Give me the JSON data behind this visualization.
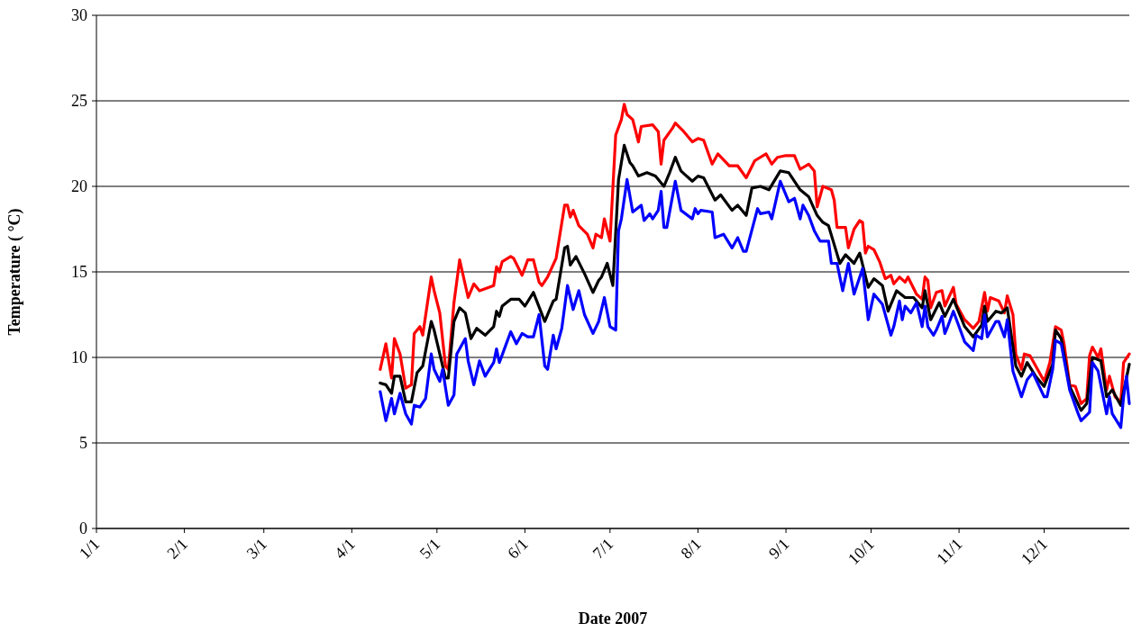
{
  "chart_data": {
    "type": "line",
    "xlabel": "Date 2007",
    "ylabel": "Temperature ( °C)",
    "xlim": [
      "2007-01-01",
      "2007-12-31"
    ],
    "xticks": [
      {
        "value": "2007-01-01",
        "label": "1/1"
      },
      {
        "value": "2007-02-01",
        "label": "2/1"
      },
      {
        "value": "2007-03-01",
        "label": "3/1"
      },
      {
        "value": "2007-04-01",
        "label": "4/1"
      },
      {
        "value": "2007-05-01",
        "label": "5/1"
      },
      {
        "value": "2007-06-01",
        "label": "6/1"
      },
      {
        "value": "2007-07-01",
        "label": "7/1"
      },
      {
        "value": "2007-08-01",
        "label": "8/1"
      },
      {
        "value": "2007-09-01",
        "label": "9/1"
      },
      {
        "value": "2007-10-01",
        "label": "10/1"
      },
      {
        "value": "2007-11-01",
        "label": "11/1"
      },
      {
        "value": "2007-12-01",
        "label": "12/1"
      }
    ],
    "ylim": [
      0,
      30
    ],
    "yticks": [
      0,
      5,
      10,
      15,
      20,
      25,
      30
    ],
    "grid": "y",
    "line_style": "solid",
    "marker": "none",
    "series": [
      {
        "color": "#ff0000",
        "x": [
          "2007-04-11",
          "2007-04-13",
          "2007-04-15",
          "2007-04-16",
          "2007-04-18",
          "2007-04-20",
          "2007-04-22",
          "2007-04-23",
          "2007-04-25",
          "2007-04-26",
          "2007-04-29",
          "2007-04-30",
          "2007-05-02",
          "2007-05-04",
          "2007-05-05",
          "2007-05-07",
          "2007-05-09",
          "2007-05-12",
          "2007-05-14",
          "2007-05-16",
          "2007-05-21",
          "2007-05-22",
          "2007-05-23",
          "2007-05-24",
          "2007-05-27",
          "2007-05-28",
          "2007-05-31",
          "2007-06-02",
          "2007-06-04",
          "2007-06-06",
          "2007-06-07",
          "2007-06-09",
          "2007-06-12",
          "2007-06-15",
          "2007-06-16",
          "2007-06-17",
          "2007-06-18",
          "2007-06-20",
          "2007-06-23",
          "2007-06-25",
          "2007-06-26",
          "2007-06-28",
          "2007-06-29",
          "2007-07-01",
          "2007-07-03",
          "2007-07-05",
          "2007-07-06",
          "2007-07-07",
          "2007-07-09",
          "2007-07-11",
          "2007-07-12",
          "2007-07-16",
          "2007-07-18",
          "2007-07-19",
          "2007-07-20",
          "2007-07-23",
          "2007-07-24",
          "2007-07-27",
          "2007-07-30",
          "2007-08-01",
          "2007-08-03",
          "2007-08-06",
          "2007-08-08",
          "2007-08-12",
          "2007-08-15",
          "2007-08-18",
          "2007-08-21",
          "2007-08-25",
          "2007-08-27",
          "2007-08-29",
          "2007-09-01",
          "2007-09-04",
          "2007-09-06",
          "2007-09-09",
          "2007-09-11",
          "2007-09-12",
          "2007-09-14",
          "2007-09-17",
          "2007-09-18",
          "2007-09-19",
          "2007-09-22",
          "2007-09-23",
          "2007-09-25",
          "2007-09-27",
          "2007-09-28",
          "2007-09-29",
          "2007-09-30",
          "2007-10-02",
          "2007-10-04",
          "2007-10-06",
          "2007-10-08",
          "2007-10-09",
          "2007-10-11",
          "2007-10-13",
          "2007-10-14",
          "2007-10-17",
          "2007-10-19",
          "2007-10-20",
          "2007-10-21",
          "2007-10-22",
          "2007-10-24",
          "2007-10-26",
          "2007-10-27",
          "2007-10-30",
          "2007-10-31",
          "2007-11-03",
          "2007-11-06",
          "2007-11-08",
          "2007-11-10",
          "2007-11-11",
          "2007-11-12",
          "2007-11-15",
          "2007-11-17",
          "2007-11-18",
          "2007-11-20",
          "2007-11-21",
          "2007-11-23",
          "2007-11-24",
          "2007-11-26",
          "2007-12-01",
          "2007-12-03",
          "2007-12-05",
          "2007-12-07",
          "2007-12-08",
          "2007-12-10",
          "2007-12-12",
          "2007-12-14",
          "2007-12-16",
          "2007-12-17",
          "2007-12-18",
          "2007-12-20",
          "2007-12-21",
          "2007-12-23",
          "2007-12-24",
          "2007-12-26",
          "2007-12-28",
          "2007-12-29",
          "2007-12-31"
        ],
        "values": [
          9.3,
          10.8,
          8.8,
          11.1,
          10.2,
          8.2,
          8.4,
          11.4,
          11.8,
          11.3,
          14.7,
          13.9,
          12.6,
          9.5,
          9.3,
          13.2,
          15.7,
          13.5,
          14.3,
          13.9,
          14.2,
          15.3,
          15.0,
          15.6,
          15.9,
          15.8,
          14.8,
          15.7,
          15.7,
          14.4,
          14.2,
          14.7,
          15.8,
          18.9,
          18.9,
          18.2,
          18.6,
          17.7,
          17.2,
          16.4,
          17.2,
          17.0,
          18.1,
          16.8,
          23.0,
          23.9,
          24.8,
          24.2,
          23.9,
          22.6,
          23.5,
          23.6,
          23.2,
          21.3,
          22.7,
          23.4,
          23.7,
          23.2,
          22.6,
          22.8,
          22.7,
          21.3,
          21.9,
          21.2,
          21.2,
          20.5,
          21.5,
          21.9,
          21.3,
          21.7,
          21.8,
          21.8,
          21.0,
          21.3,
          20.9,
          18.8,
          20.0,
          19.8,
          19.2,
          17.6,
          17.6,
          16.4,
          17.5,
          18.0,
          17.9,
          16.1,
          16.5,
          16.3,
          15.6,
          14.6,
          14.8,
          14.3,
          14.7,
          14.4,
          14.7,
          13.7,
          13.4,
          14.7,
          14.5,
          12.9,
          13.8,
          13.9,
          13.0,
          14.1,
          13.1,
          12.2,
          11.7,
          12.1,
          13.8,
          12.7,
          13.5,
          13.3,
          12.6,
          13.6,
          12.5,
          10.2,
          9.3,
          10.2,
          10.1,
          8.6,
          9.7,
          11.8,
          11.6,
          10.8,
          8.4,
          8.3,
          7.3,
          7.6,
          10.1,
          10.6,
          10.0,
          10.5,
          8.1,
          8.9,
          7.7,
          7.4,
          9.7,
          10.2
        ]
      },
      {
        "color": "#000000",
        "x": [
          "2007-04-11",
          "2007-04-13",
          "2007-04-15",
          "2007-04-16",
          "2007-04-18",
          "2007-04-20",
          "2007-04-22",
          "2007-04-24",
          "2007-04-26",
          "2007-04-29",
          "2007-04-30",
          "2007-05-02",
          "2007-05-04",
          "2007-05-05",
          "2007-05-07",
          "2007-05-09",
          "2007-05-11",
          "2007-05-13",
          "2007-05-15",
          "2007-05-18",
          "2007-05-21",
          "2007-05-22",
          "2007-05-23",
          "2007-05-24",
          "2007-05-27",
          "2007-05-30",
          "2007-06-01",
          "2007-06-04",
          "2007-06-08",
          "2007-06-11",
          "2007-06-12",
          "2007-06-15",
          "2007-06-16",
          "2007-06-17",
          "2007-06-19",
          "2007-06-22",
          "2007-06-25",
          "2007-06-27",
          "2007-06-28",
          "2007-06-30",
          "2007-07-02",
          "2007-07-04",
          "2007-07-05",
          "2007-07-06",
          "2007-07-08",
          "2007-07-09",
          "2007-07-11",
          "2007-07-14",
          "2007-07-17",
          "2007-07-20",
          "2007-07-22",
          "2007-07-24",
          "2007-07-26",
          "2007-07-30",
          "2007-08-01",
          "2007-08-03",
          "2007-08-07",
          "2007-08-09",
          "2007-08-13",
          "2007-08-15",
          "2007-08-18",
          "2007-08-20",
          "2007-08-23",
          "2007-08-26",
          "2007-08-30",
          "2007-09-02",
          "2007-09-04",
          "2007-09-06",
          "2007-09-09",
          "2007-09-12",
          "2007-09-14",
          "2007-09-16",
          "2007-09-18",
          "2007-09-20",
          "2007-09-22",
          "2007-09-25",
          "2007-09-27",
          "2007-09-30",
          "2007-10-02",
          "2007-10-05",
          "2007-10-07",
          "2007-10-10",
          "2007-10-13",
          "2007-10-16",
          "2007-10-19",
          "2007-10-20",
          "2007-10-22",
          "2007-10-25",
          "2007-10-27",
          "2007-10-30",
          "2007-11-01",
          "2007-11-03",
          "2007-11-06",
          "2007-11-09",
          "2007-11-10",
          "2007-11-11",
          "2007-11-14",
          "2007-11-16",
          "2007-11-18",
          "2007-11-21",
          "2007-11-23",
          "2007-11-25",
          "2007-11-28",
          "2007-12-01",
          "2007-12-04",
          "2007-12-05",
          "2007-12-07",
          "2007-12-10",
          "2007-12-14",
          "2007-12-16",
          "2007-12-18",
          "2007-12-21",
          "2007-12-23",
          "2007-12-25",
          "2007-12-28",
          "2007-12-31"
        ],
        "values": [
          8.5,
          8.4,
          7.9,
          8.9,
          8.9,
          7.4,
          7.4,
          9.1,
          9.5,
          12.1,
          11.6,
          10.2,
          8.8,
          8.8,
          12.1,
          12.9,
          12.6,
          11.1,
          11.7,
          11.3,
          11.8,
          12.7,
          12.4,
          13.0,
          13.4,
          13.4,
          13.0,
          13.8,
          12.1,
          13.3,
          13.4,
          16.4,
          16.5,
          15.4,
          15.9,
          14.9,
          13.8,
          14.5,
          14.7,
          15.5,
          14.2,
          20.4,
          21.4,
          22.4,
          21.4,
          21.2,
          20.6,
          20.8,
          20.6,
          20.0,
          20.8,
          21.7,
          20.9,
          20.3,
          20.6,
          20.5,
          19.2,
          19.5,
          18.6,
          18.9,
          18.3,
          19.9,
          20.0,
          19.8,
          20.9,
          20.8,
          20.3,
          19.8,
          19.4,
          18.3,
          17.9,
          17.7,
          16.6,
          15.5,
          16.0,
          15.5,
          16.1,
          14.1,
          14.6,
          14.2,
          12.7,
          13.9,
          13.5,
          13.5,
          12.9,
          13.9,
          12.2,
          13.2,
          12.4,
          13.4,
          12.6,
          11.8,
          11.2,
          11.9,
          13.0,
          12.1,
          12.7,
          12.6,
          12.9,
          9.5,
          8.9,
          9.7,
          8.9,
          8.3,
          9.6,
          11.6,
          11.1,
          8.3,
          6.9,
          7.3,
          10.0,
          9.8,
          7.7,
          8.1,
          7.2,
          9.6
        ]
      },
      {
        "color": "#0000ff",
        "x": [
          "2007-04-11",
          "2007-04-13",
          "2007-04-15",
          "2007-04-16",
          "2007-04-18",
          "2007-04-20",
          "2007-04-22",
          "2007-04-23",
          "2007-04-25",
          "2007-04-27",
          "2007-04-29",
          "2007-04-30",
          "2007-05-02",
          "2007-05-03",
          "2007-05-05",
          "2007-05-07",
          "2007-05-08",
          "2007-05-11",
          "2007-05-12",
          "2007-05-14",
          "2007-05-16",
          "2007-05-18",
          "2007-05-21",
          "2007-05-22",
          "2007-05-23",
          "2007-05-25",
          "2007-05-27",
          "2007-05-29",
          "2007-05-31",
          "2007-06-02",
          "2007-06-04",
          "2007-06-06",
          "2007-06-08",
          "2007-06-09",
          "2007-06-11",
          "2007-06-12",
          "2007-06-14",
          "2007-06-16",
          "2007-06-18",
          "2007-06-20",
          "2007-06-22",
          "2007-06-25",
          "2007-06-27",
          "2007-06-29",
          "2007-07-01",
          "2007-07-03",
          "2007-07-04",
          "2007-07-05",
          "2007-07-07",
          "2007-07-09",
          "2007-07-12",
          "2007-07-13",
          "2007-07-15",
          "2007-07-16",
          "2007-07-18",
          "2007-07-19",
          "2007-07-20",
          "2007-07-21",
          "2007-07-24",
          "2007-07-26",
          "2007-07-30",
          "2007-07-31",
          "2007-08-01",
          "2007-08-02",
          "2007-08-06",
          "2007-08-07",
          "2007-08-10",
          "2007-08-13",
          "2007-08-15",
          "2007-08-17",
          "2007-08-18",
          "2007-08-22",
          "2007-08-23",
          "2007-08-26",
          "2007-08-27",
          "2007-08-30",
          "2007-09-02",
          "2007-09-04",
          "2007-09-06",
          "2007-09-07",
          "2007-09-09",
          "2007-09-11",
          "2007-09-13",
          "2007-09-16",
          "2007-09-17",
          "2007-09-19",
          "2007-09-21",
          "2007-09-23",
          "2007-09-25",
          "2007-09-28",
          "2007-09-30",
          "2007-10-02",
          "2007-10-05",
          "2007-10-08",
          "2007-10-09",
          "2007-10-11",
          "2007-10-12",
          "2007-10-13",
          "2007-10-15",
          "2007-10-17",
          "2007-10-19",
          "2007-10-20",
          "2007-10-21",
          "2007-10-23",
          "2007-10-24",
          "2007-10-26",
          "2007-10-27",
          "2007-10-28",
          "2007-10-30",
          "2007-11-01",
          "2007-11-03",
          "2007-11-06",
          "2007-11-07",
          "2007-11-09",
          "2007-11-10",
          "2007-11-11",
          "2007-11-14",
          "2007-11-15",
          "2007-11-17",
          "2007-11-18",
          "2007-11-20",
          "2007-11-23",
          "2007-11-25",
          "2007-11-27",
          "2007-12-01",
          "2007-12-02",
          "2007-12-04",
          "2007-12-05",
          "2007-12-07",
          "2007-12-10",
          "2007-12-13",
          "2007-12-14",
          "2007-12-17",
          "2007-12-18",
          "2007-12-20",
          "2007-12-23",
          "2007-12-24",
          "2007-12-25",
          "2007-12-28",
          "2007-12-29",
          "2007-12-30",
          "2007-12-31"
        ],
        "values": [
          8.0,
          6.3,
          7.6,
          6.7,
          7.9,
          6.7,
          6.1,
          7.2,
          7.1,
          7.6,
          10.2,
          9.3,
          8.6,
          9.3,
          7.2,
          7.8,
          10.2,
          11.1,
          9.8,
          8.4,
          9.8,
          8.9,
          9.7,
          10.5,
          9.7,
          10.6,
          11.5,
          10.8,
          11.4,
          11.2,
          11.2,
          12.5,
          9.5,
          9.3,
          11.3,
          10.5,
          11.7,
          14.2,
          12.8,
          13.9,
          12.5,
          11.4,
          12.1,
          13.5,
          11.8,
          11.6,
          17.4,
          18.1,
          20.4,
          18.5,
          18.9,
          18.0,
          18.4,
          18.1,
          18.6,
          19.7,
          17.6,
          17.6,
          20.3,
          18.6,
          18.1,
          18.7,
          18.4,
          18.6,
          18.5,
          17.0,
          17.2,
          16.4,
          17.0,
          16.2,
          16.2,
          18.7,
          18.4,
          18.5,
          18.1,
          20.3,
          19.1,
          19.3,
          18.1,
          18.9,
          18.3,
          17.4,
          16.8,
          16.8,
          15.5,
          15.5,
          13.9,
          15.5,
          13.7,
          15.2,
          12.2,
          13.7,
          13.1,
          11.3,
          11.8,
          13.3,
          12.2,
          13.0,
          12.6,
          13.2,
          11.8,
          13.0,
          11.8,
          11.3,
          11.6,
          12.4,
          11.4,
          11.8,
          12.7,
          11.8,
          10.9,
          10.4,
          11.3,
          11.1,
          12.5,
          11.2,
          12.1,
          12.1,
          11.2,
          12.2,
          9.2,
          7.7,
          8.7,
          9.1,
          7.7,
          7.7,
          9.3,
          11.0,
          10.8,
          8.1,
          6.7,
          6.3,
          6.8,
          9.7,
          9.2,
          6.7,
          7.7,
          6.7,
          5.9,
          7.7,
          8.9,
          7.3
        ]
      }
    ]
  }
}
